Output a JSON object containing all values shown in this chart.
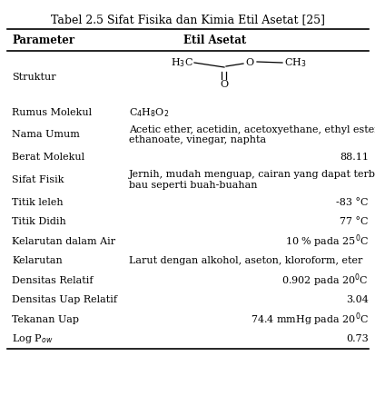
{
  "title": "Tabel 2.5 Sifat Fisika dan Kimia Etil Asetat [25]",
  "col1_header": "Parameter",
  "col2_header": "Etil Asetat",
  "rows": [
    {
      "param": "Struktur",
      "value": "__STRUCTURE__",
      "align": "center",
      "wrap": false
    },
    {
      "param": "Rumus Molekul",
      "value": "__RUMUS__",
      "align": "left",
      "wrap": false
    },
    {
      "param": "Nama Umum",
      "value": "Acetic ether, acetidin, acetoxyethane, ethyl ester, ethyl\nethanoate, vinegar, naphta",
      "align": "left",
      "wrap": true
    },
    {
      "param": "Berat Molekul",
      "value": "88.11",
      "align": "right",
      "wrap": false
    },
    {
      "param": "Sifat Fisik",
      "value": "Jernih, mudah menguap, cairan yang dapat terbakar;\nbau seperti buah-buahan",
      "align": "left",
      "wrap": true
    },
    {
      "param": "Titik leleh",
      "value": "-83 °C",
      "align": "right",
      "wrap": false
    },
    {
      "param": "Titik Didih",
      "value": "77 °C",
      "align": "right",
      "wrap": false
    },
    {
      "param": "Kelarutan dalam Air",
      "value": "__KELARUTAN_AIR__",
      "align": "right",
      "wrap": false
    },
    {
      "param": "Kelarutan",
      "value": "Larut dengan alkohol, aseton, kloroform, eter",
      "align": "left",
      "wrap": false
    },
    {
      "param": "Densitas Relatif",
      "value": "__DENSITAS_REL__",
      "align": "right",
      "wrap": false
    },
    {
      "param": "Densitas Uap Relatif",
      "value": "3.04",
      "align": "right",
      "wrap": false
    },
    {
      "param": "Tekanan Uap",
      "value": "__TEKANAN_UAP__",
      "align": "right",
      "wrap": false
    },
    {
      "param": "Log P",
      "value": "0.73",
      "align": "right",
      "wrap": false
    }
  ],
  "bg_color": "#ffffff",
  "text_color": "#000000",
  "font_size": 8.0,
  "header_font_size": 8.5,
  "title_font_size": 9.0
}
